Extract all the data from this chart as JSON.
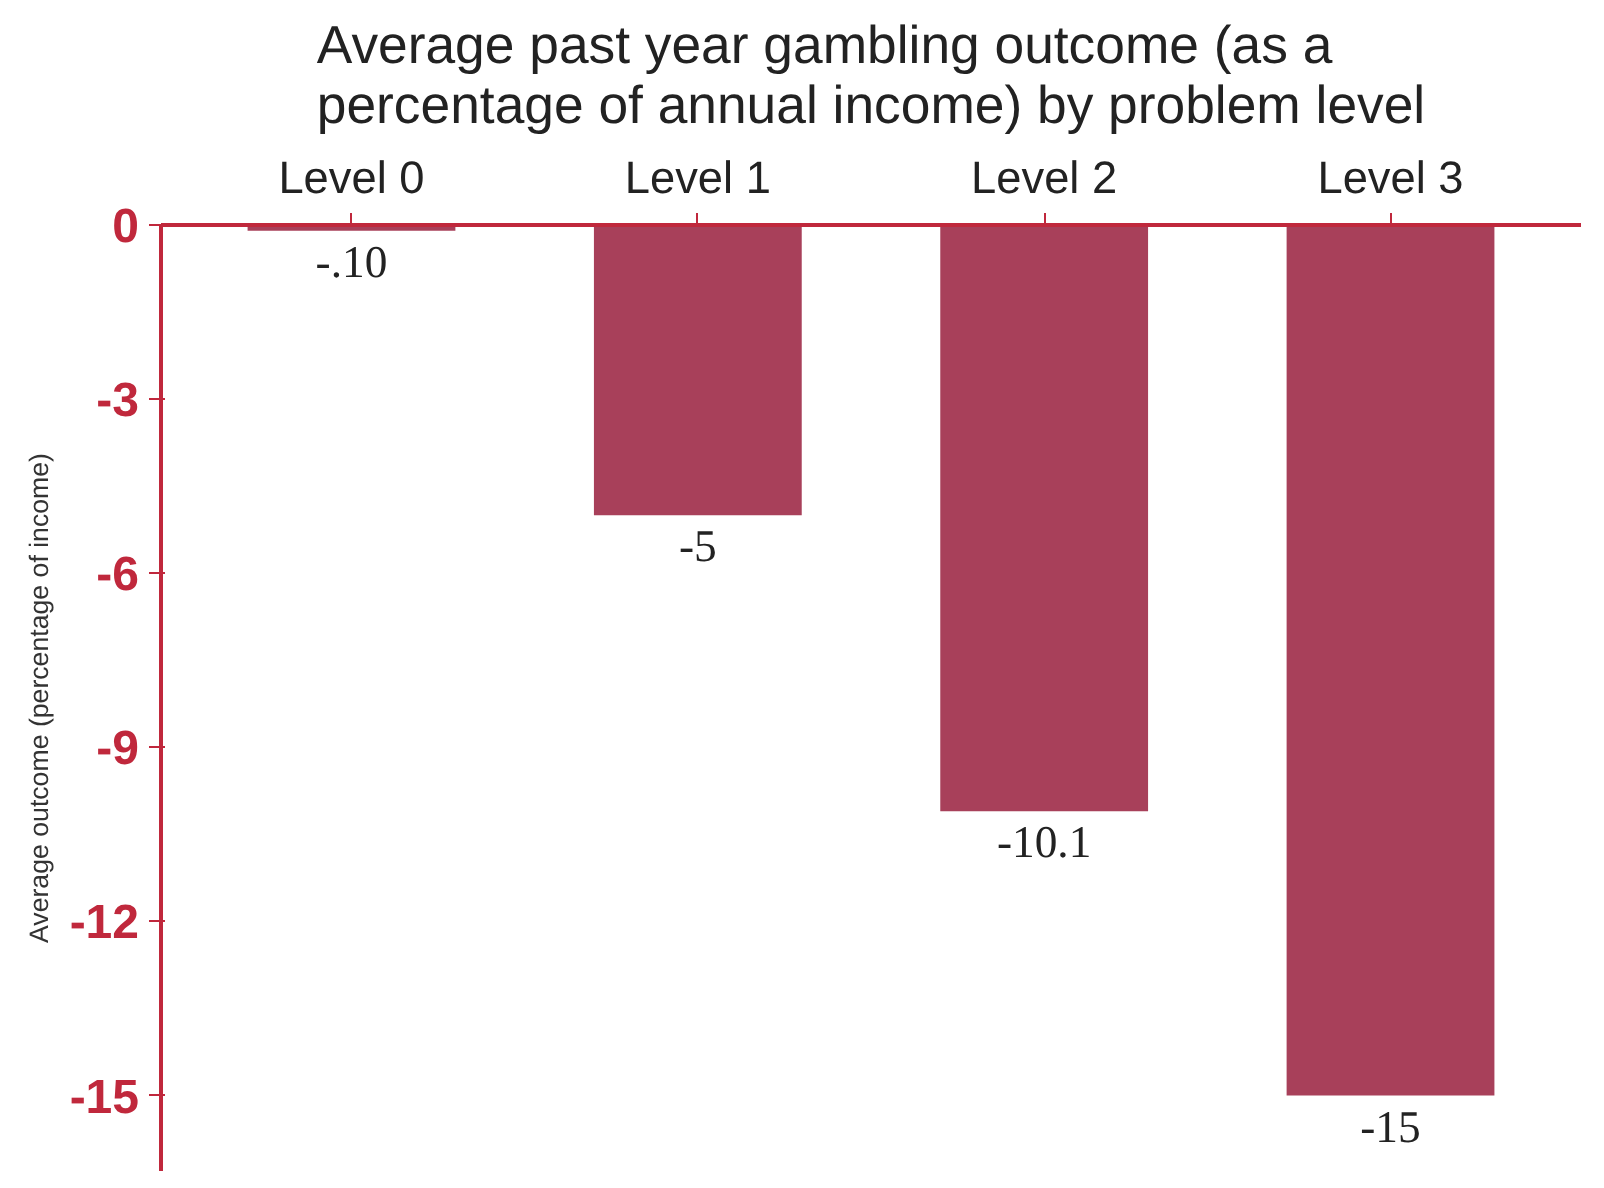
{
  "chart_data": {
    "type": "bar",
    "title": "Average past year gambling outcome (as a\npercentage of annual income) by problem level",
    "ylabel": "Average outcome (percentage of income)",
    "categories": [
      "Level 0",
      "Level 1",
      "Level 2",
      "Level 3"
    ],
    "values": [
      -0.1,
      -5,
      -10.1,
      -15
    ],
    "value_labels": [
      "-.10",
      "-5",
      "-10.1",
      "-15"
    ],
    "color": "#a8405a",
    "ylim": [
      -16.3,
      0
    ],
    "yticks": [
      0,
      -3,
      -6,
      -9,
      -12,
      -15
    ],
    "grid": false
  }
}
